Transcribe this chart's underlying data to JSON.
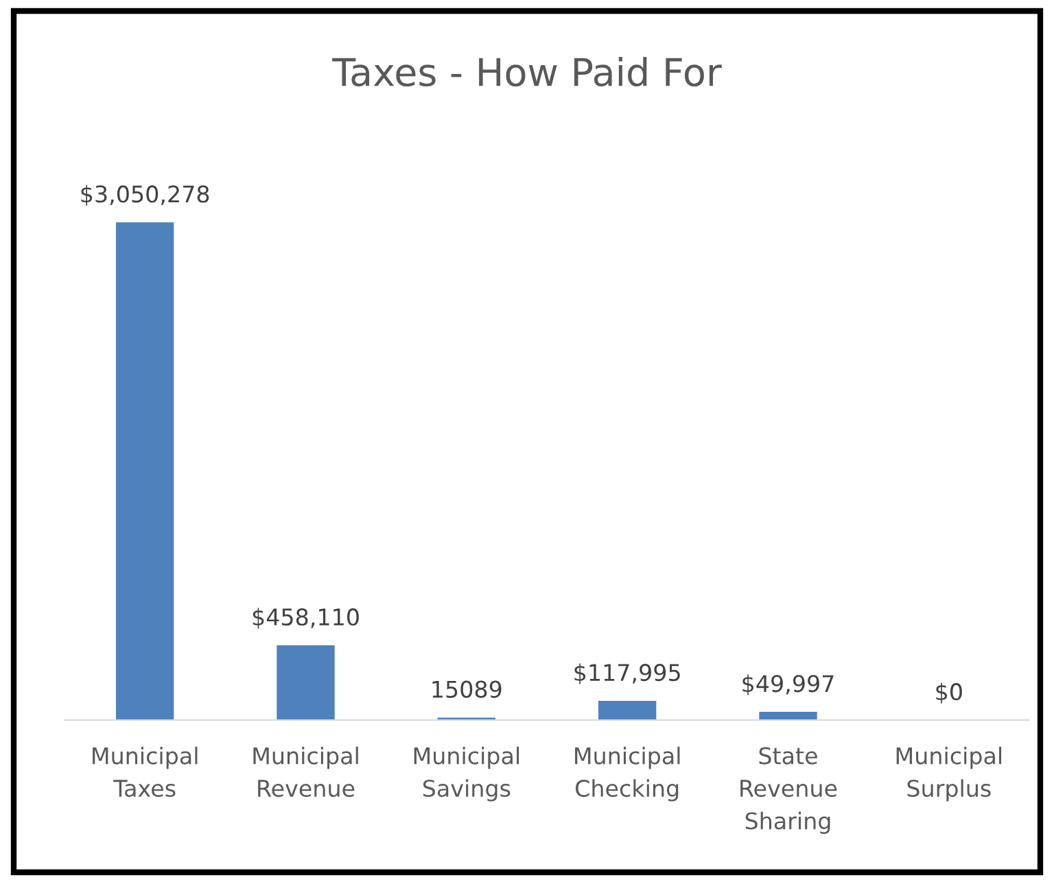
{
  "chart_data": {
    "type": "bar",
    "title": "Taxes - How Paid For",
    "categories": [
      "Municipal\nTaxes",
      "Municipal\nRevenue",
      "Municipal\nSavings",
      "Municipal\nChecking",
      "State\nRevenue\nSharing",
      "Municipal\nSurplus"
    ],
    "values": [
      3050278,
      458110,
      15089,
      117995,
      49997,
      0
    ],
    "value_labels": [
      "$3,050,278",
      "$458,110",
      "15089",
      "$117,995",
      "$49,997",
      "$0"
    ],
    "color": "#4f81bd",
    "grid": false,
    "legend": false
  }
}
